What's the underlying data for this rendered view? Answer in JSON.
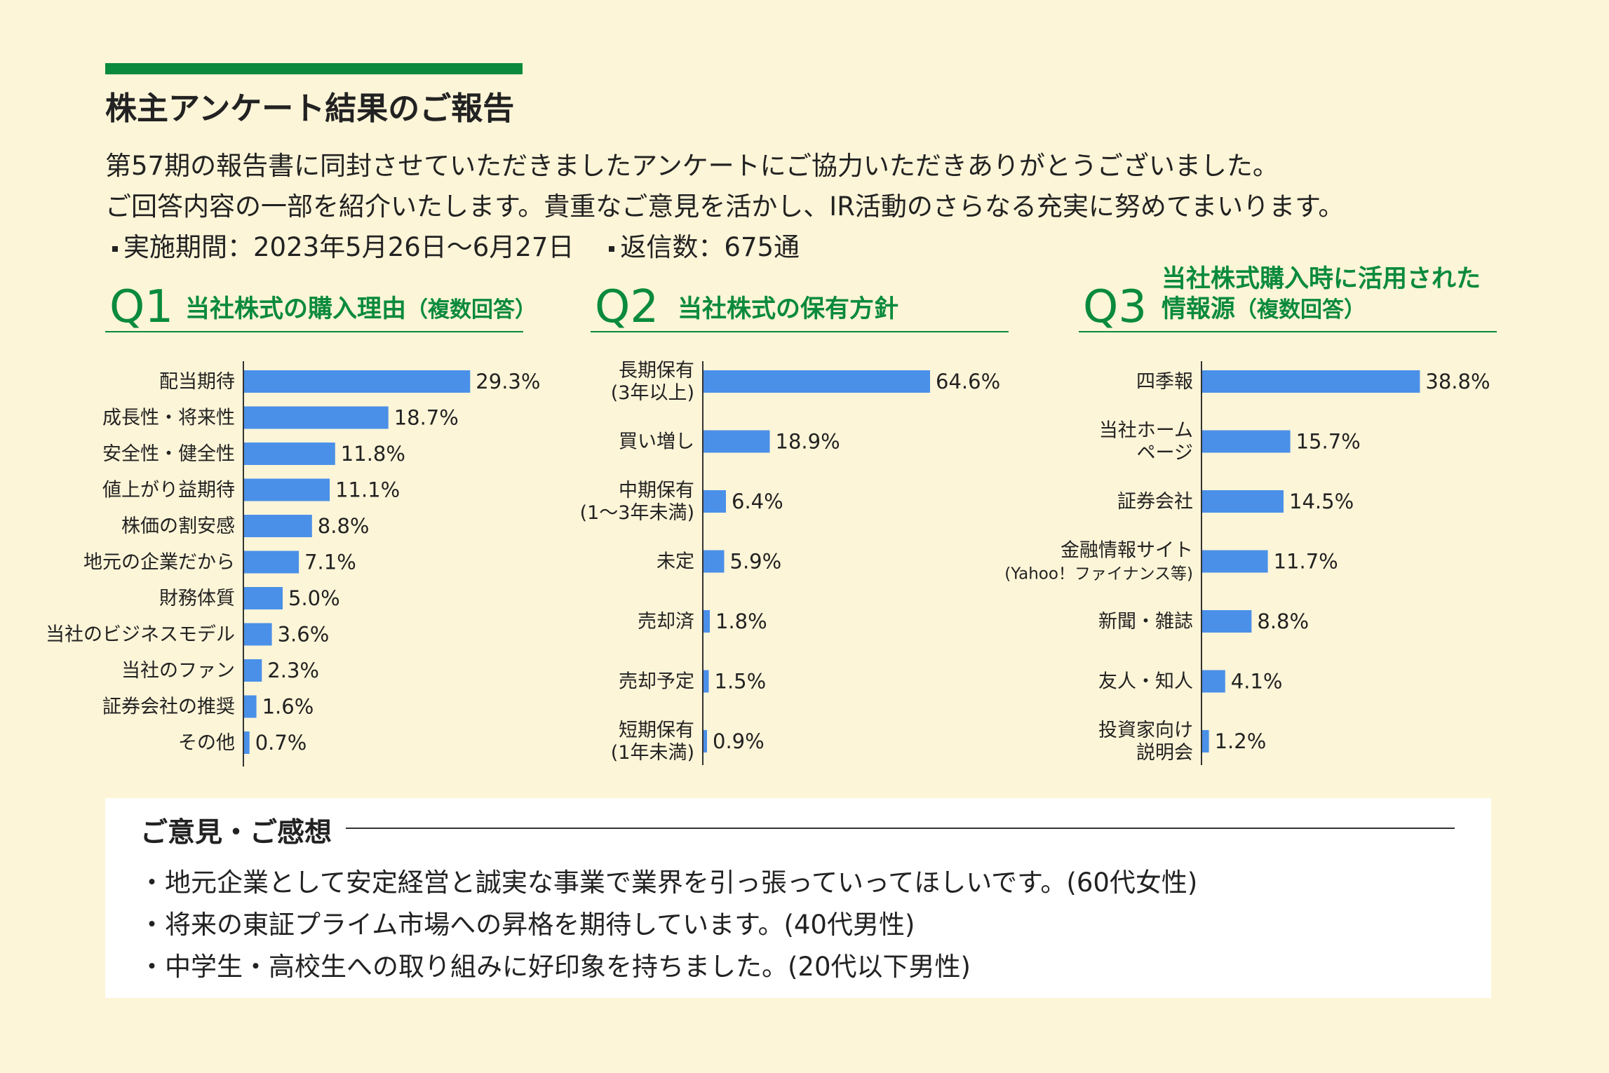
{
  "header": {
    "title": "株主アンケート結果のご報告",
    "intro_lines": [
      "第57期の報告書に同封させていただきましたアンケートにご協力いただきありがとうございました。",
      "ご回答内容の一部を紹介いたします。貴重なご意見を活かし、IR活動のさらなる充実に努めてまいります。"
    ],
    "period": "実施期間：2023年5月26日～6月27日",
    "responses": "返信数：675通"
  },
  "questions": [
    {
      "num": "Q1",
      "title": "当社株式の購入理由",
      "sub": "（複数回答）"
    },
    {
      "num": "Q2",
      "title": "当社株式の保有方針",
      "sub": ""
    },
    {
      "num": "Q3",
      "title": "当社株式購入時に活用された",
      "title2": "情報源",
      "sub": "（複数回答）"
    }
  ],
  "colors": {
    "bar": "#4a90e8",
    "accent": "#0a8a3c",
    "background": "#fdf5d8"
  },
  "chart_data": [
    {
      "type": "bar",
      "orientation": "horizontal",
      "title": "当社株式の購入理由（複数回答）",
      "categories": [
        "配当期待",
        "成長性・将来性",
        "安全性・健全性",
        "値上がり益期待",
        "株価の割安感",
        "地元の企業だから",
        "財務体質",
        "当社のビジネスモデル",
        "当社のファン",
        "証券会社の推奨",
        "その他"
      ],
      "values": [
        29.3,
        18.7,
        11.8,
        11.1,
        8.8,
        7.1,
        5.0,
        3.6,
        2.3,
        1.6,
        0.7
      ],
      "data_labels": [
        "29.3%",
        "18.7%",
        "11.8%",
        "11.1%",
        "8.8%",
        "7.1%",
        "5.0%",
        "3.6%",
        "2.3%",
        "1.6%",
        "0.7%"
      ],
      "xlim": [
        0,
        100
      ]
    },
    {
      "type": "bar",
      "orientation": "horizontal",
      "title": "当社株式の保有方針",
      "categories": [
        [
          "長期保有",
          "(3年以上)"
        ],
        [
          "買い増し"
        ],
        [
          "中期保有",
          "(1～3年未満)"
        ],
        [
          "未定"
        ],
        [
          "売却済"
        ],
        [
          "売却予定"
        ],
        [
          "短期保有",
          "(1年未満)"
        ]
      ],
      "values": [
        64.6,
        18.9,
        6.4,
        5.9,
        1.8,
        1.5,
        0.9
      ],
      "data_labels": [
        "64.6%",
        "18.9%",
        "6.4%",
        "5.9%",
        "1.8%",
        "1.5%",
        "0.9%"
      ],
      "xlim": [
        0,
        100
      ]
    },
    {
      "type": "bar",
      "orientation": "horizontal",
      "title": "当社株式購入時に活用された情報源（複数回答）",
      "categories": [
        [
          "四季報"
        ],
        [
          "当社ホーム",
          "ページ"
        ],
        [
          "証券会社"
        ],
        [
          "金融情報サイト",
          "(Yahoo！ファイナンス等)"
        ],
        [
          "新聞・雑誌"
        ],
        [
          "友人・知人"
        ],
        [
          "投資家向け",
          "説明会"
        ]
      ],
      "values": [
        38.8,
        15.7,
        14.5,
        11.7,
        8.8,
        4.1,
        1.2
      ],
      "data_labels": [
        "38.8%",
        "15.7%",
        "14.5%",
        "11.7%",
        "8.8%",
        "4.1%",
        "1.2%"
      ],
      "xlim": [
        0,
        100
      ]
    }
  ],
  "comments": {
    "title": "ご意見・ご感想",
    "items": [
      "・地元企業として安定経営と誠実な事業で業界を引っ張っていってほしいです。(60代女性)",
      "・将来の東証プライム市場への昇格を期待しています。(40代男性)",
      "・中学生・高校生への取り組みに好印象を持ちました。(20代以下男性)"
    ]
  }
}
